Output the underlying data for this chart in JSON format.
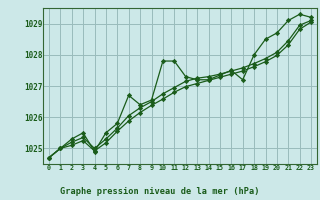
{
  "title": "Graphe pression niveau de la mer (hPa)",
  "bg_color": "#cce8e8",
  "plot_bg_color": "#cce8e8",
  "grid_color": "#99bbbb",
  "line_color": "#1a5c1a",
  "marker_color": "#1a5c1a",
  "spine_color": "#336633",
  "x_values": [
    0,
    1,
    2,
    3,
    4,
    5,
    6,
    7,
    8,
    9,
    10,
    11,
    12,
    13,
    14,
    15,
    16,
    17,
    18,
    19,
    20,
    21,
    22,
    23
  ],
  "series1": [
    1024.7,
    1025.0,
    1025.3,
    1025.5,
    1024.9,
    1025.5,
    1025.8,
    1026.7,
    1026.4,
    1026.55,
    1027.8,
    1027.8,
    1027.3,
    1027.2,
    1027.2,
    1027.35,
    1027.5,
    1027.2,
    1028.0,
    1028.5,
    1028.7,
    1029.1,
    1029.3,
    1029.2
  ],
  "series2": [
    1024.7,
    1025.0,
    1025.2,
    1025.35,
    1025.0,
    1025.3,
    1025.65,
    1026.05,
    1026.3,
    1026.5,
    1026.75,
    1026.95,
    1027.15,
    1027.25,
    1027.3,
    1027.38,
    1027.48,
    1027.58,
    1027.72,
    1027.88,
    1028.08,
    1028.45,
    1028.95,
    1029.1
  ],
  "series3": [
    1024.7,
    1025.0,
    1025.1,
    1025.25,
    1024.92,
    1025.18,
    1025.55,
    1025.88,
    1026.15,
    1026.38,
    1026.58,
    1026.8,
    1026.98,
    1027.08,
    1027.18,
    1027.28,
    1027.38,
    1027.48,
    1027.62,
    1027.78,
    1027.98,
    1028.32,
    1028.82,
    1029.05
  ],
  "ylim": [
    1024.5,
    1029.5
  ],
  "yticks": [
    1025,
    1026,
    1027,
    1028,
    1029
  ],
  "xlim": [
    -0.5,
    23.5
  ]
}
